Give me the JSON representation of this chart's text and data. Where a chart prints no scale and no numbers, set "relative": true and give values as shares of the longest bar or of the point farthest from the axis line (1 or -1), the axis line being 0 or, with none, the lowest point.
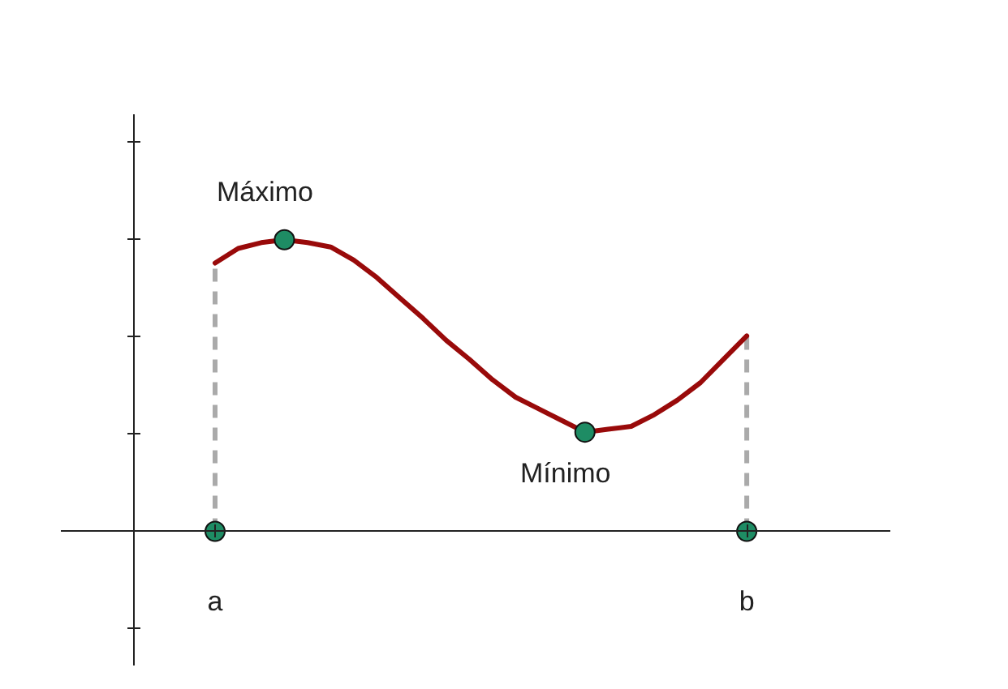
{
  "chart_data": {
    "type": "line",
    "relative": true,
    "categories": [
      "a",
      null,
      null,
      null,
      null,
      null,
      null,
      null,
      null,
      null,
      null,
      null,
      null,
      null,
      null,
      null,
      null,
      null,
      null,
      null,
      null,
      null,
      null,
      "b"
    ],
    "series": [
      {
        "color": "#990a0a",
        "values": [
          0.92,
          0.97,
          0.99,
          1,
          0.99,
          0.975,
          0.93,
          0.87,
          0.8,
          0.73,
          0.655,
          0.59,
          0.52,
          0.46,
          0.42,
          0.38,
          0.34,
          0.35,
          0.36,
          0.4,
          0.45,
          0.51,
          0.59,
          0.67
        ]
      },
      {
        "type": "scatter",
        "color": "#1e8c64",
        "values": [
          0,
          null,
          null,
          1,
          null,
          null,
          null,
          null,
          null,
          null,
          null,
          null,
          null,
          null,
          null,
          null,
          0.34,
          null,
          null,
          null,
          null,
          null,
          null,
          0
        ]
      }
    ],
    "annotations": [
      {
        "text": "Máximo",
        "y": 1
      },
      {
        "text": "Mínimo",
        "y": 0.34
      }
    ]
  }
}
